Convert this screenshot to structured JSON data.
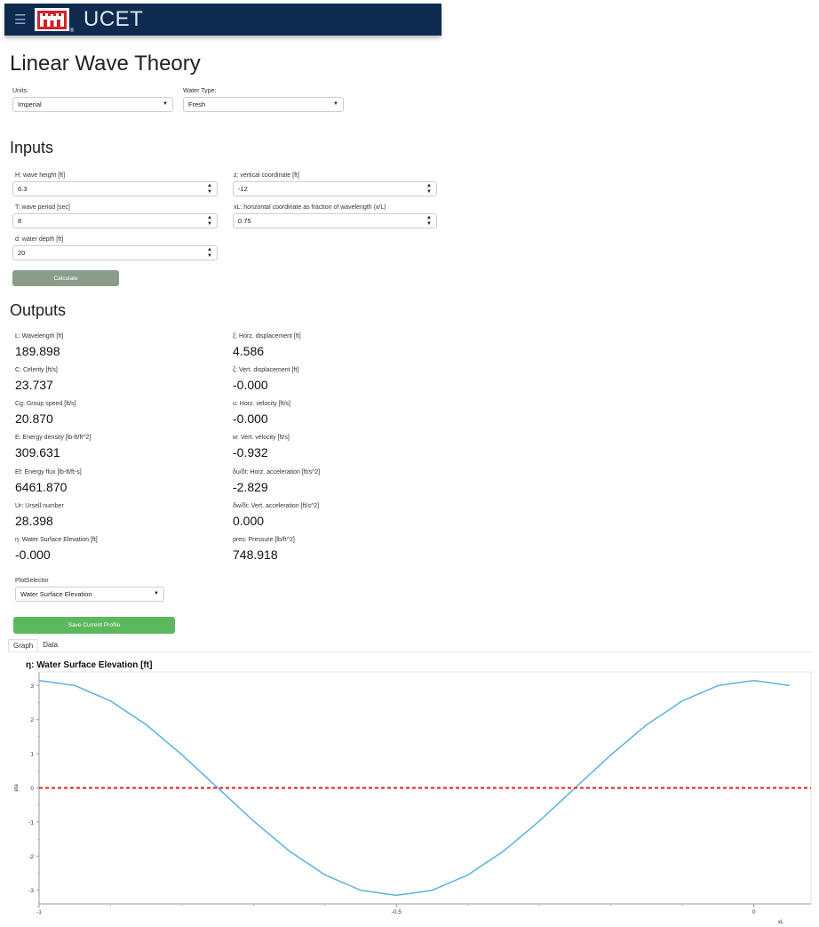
{
  "header": {
    "app_title": "UCET",
    "logo_icon": "usace-castle-icon",
    "menu_icon": "hamburger-icon",
    "background": "#0e2a4f"
  },
  "page_title": "Linear Wave Theory",
  "settings": {
    "units": {
      "label": "Units:",
      "value": "Imperial"
    },
    "water_type": {
      "label": "Water Type:",
      "value": "Fresh"
    }
  },
  "inputs": {
    "title": "Inputs",
    "wave_height": {
      "label": "H: wave height [ft]",
      "value": "6.3"
    },
    "wave_period": {
      "label": "T: wave period [sec]",
      "value": "8"
    },
    "water_depth": {
      "label": "d: water depth [ft]",
      "value": "20"
    },
    "vertical_coordinate": {
      "label": "z: vertical coordinate [ft]",
      "value": "-12"
    },
    "horizontal_coordinate": {
      "label": "xL: horizontal coordinate as fraction of wavelength (x/L)",
      "value": "0.75"
    },
    "calculate_label": "Calculate"
  },
  "outputs": {
    "title": "Outputs",
    "left": [
      {
        "label": "L: Wavelength [ft]",
        "value": "189.898"
      },
      {
        "label": "C: Celerity [ft/s]",
        "value": "23.737"
      },
      {
        "label": "Cg: Group speed [ft/s]",
        "value": "20.870"
      },
      {
        "label": "E: Energy density [lb-ft/ft^2]",
        "value": "309.631"
      },
      {
        "label": "Ef: Energy flux [lb-ft/ft-s]",
        "value": "6461.870"
      },
      {
        "label": "Ur: Ursell number",
        "value": "28.398"
      },
      {
        "label": "η: Water Surface Elevation [ft]",
        "value": "-0.000"
      }
    ],
    "right": [
      {
        "label": "ξ: Horz. displacement [ft]",
        "value": "4.586"
      },
      {
        "label": "ζ: Vert. displacement [ft]",
        "value": "-0.000"
      },
      {
        "label": "u: Horz. velocity [ft/s]",
        "value": "-0.000"
      },
      {
        "label": "w: Vert. velocity [ft/s]",
        "value": "-0.932"
      },
      {
        "label": "δu/δt: Horz. acceleration [ft/s^2]",
        "value": "-2.829"
      },
      {
        "label": "δw/δt: Vert. acceleration [ft/s^2]",
        "value": "0.000"
      },
      {
        "label": "pres: Pressure [lb/ft^2]",
        "value": "748.918"
      }
    ]
  },
  "plot_selector": {
    "label": "PlotSelector",
    "value": "Water Surface Elevation"
  },
  "save_profile_label": "Save Current Profile",
  "tabs": [
    {
      "label": "Graph",
      "active": true
    },
    {
      "label": "Data",
      "active": false
    }
  ],
  "colors": {
    "save_button": "#5cb85c",
    "calculate_button": "#8a9d8a",
    "curve": "#5bb2dd",
    "zero_line": "#e31a1c"
  },
  "chart_data": {
    "type": "line",
    "title": "η: Water Surface Elevation [ft]",
    "xlabel": "xL",
    "ylabel": "eta",
    "xlim": [
      -1,
      0.08
    ],
    "ylim": [
      -3.4,
      3.4
    ],
    "xticks": [
      "-1",
      "-0.5",
      "0"
    ],
    "yticks": [
      "3",
      "2",
      "1",
      "0",
      "-1",
      "-2",
      "-3"
    ],
    "x": [
      -1.0,
      -0.95,
      -0.9,
      -0.85,
      -0.8,
      -0.75,
      -0.7,
      -0.65,
      -0.6,
      -0.55,
      -0.5,
      -0.45,
      -0.4,
      -0.35,
      -0.3,
      -0.25,
      -0.2,
      -0.15,
      -0.1,
      -0.05,
      0.0,
      0.05
    ],
    "series": [
      {
        "values": [
          3.15,
          3.0,
          2.55,
          1.85,
          0.97,
          0.0,
          -0.97,
          -1.85,
          -2.55,
          -3.0,
          -3.15,
          -3.0,
          -2.55,
          -1.85,
          -0.97,
          0.0,
          0.97,
          1.85,
          2.55,
          3.0,
          3.15,
          3.0
        ],
        "color": "#5bb2dd"
      },
      {
        "values": [
          0,
          0,
          0,
          0,
          0,
          0,
          0,
          0,
          0,
          0,
          0,
          0,
          0,
          0,
          0,
          0,
          0,
          0,
          0,
          0,
          0,
          0
        ],
        "color": "#e31a1c",
        "style": "dashed"
      }
    ],
    "grid": false
  }
}
